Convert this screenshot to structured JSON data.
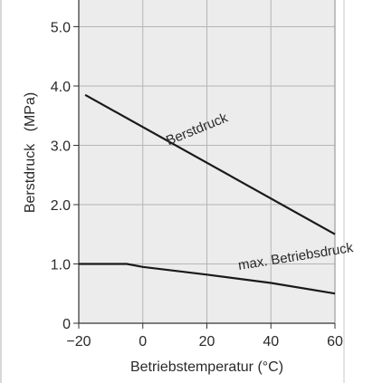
{
  "chart_data": {
    "type": "line",
    "title": "",
    "xlabel": "Betriebstemperatur  (°C)",
    "ylabel": "Berstdruck   (MPa)",
    "xlim": [
      -20,
      60
    ],
    "ylim": [
      0,
      5.0
    ],
    "xticks": [
      -20,
      0,
      20,
      40,
      60
    ],
    "xtick_labels": [
      "−20",
      "0",
      "20",
      "40",
      "60"
    ],
    "yticks": [
      0,
      1.0,
      2.0,
      3.0,
      4.0,
      5.0
    ],
    "ytick_labels": [
      "0",
      "1.0",
      "2.0",
      "3.0",
      "4.0",
      "5.0"
    ],
    "grid": true,
    "legend": "none",
    "series": [
      {
        "name": "Berstdruck",
        "color": "#1a1a1a",
        "x": [
          -18,
          60
        ],
        "y": [
          3.85,
          1.5
        ]
      },
      {
        "name": "max. Betriebsdruck",
        "color": "#1a1a1a",
        "x": [
          -20,
          -5,
          0,
          20,
          40,
          60
        ],
        "y": [
          1.0,
          1.0,
          0.95,
          0.82,
          0.68,
          0.5
        ]
      }
    ],
    "annotations": [
      {
        "text": "Berstdruck",
        "x": 8,
        "y": 3.0,
        "angle": -22
      },
      {
        "text": "max. Betriebsdruck",
        "x": 30,
        "y": 0.9,
        "angle": -9
      }
    ],
    "colors": {
      "plot_background": "#ececec",
      "grid": "#b5b5b5",
      "axis": "#333333"
    }
  }
}
